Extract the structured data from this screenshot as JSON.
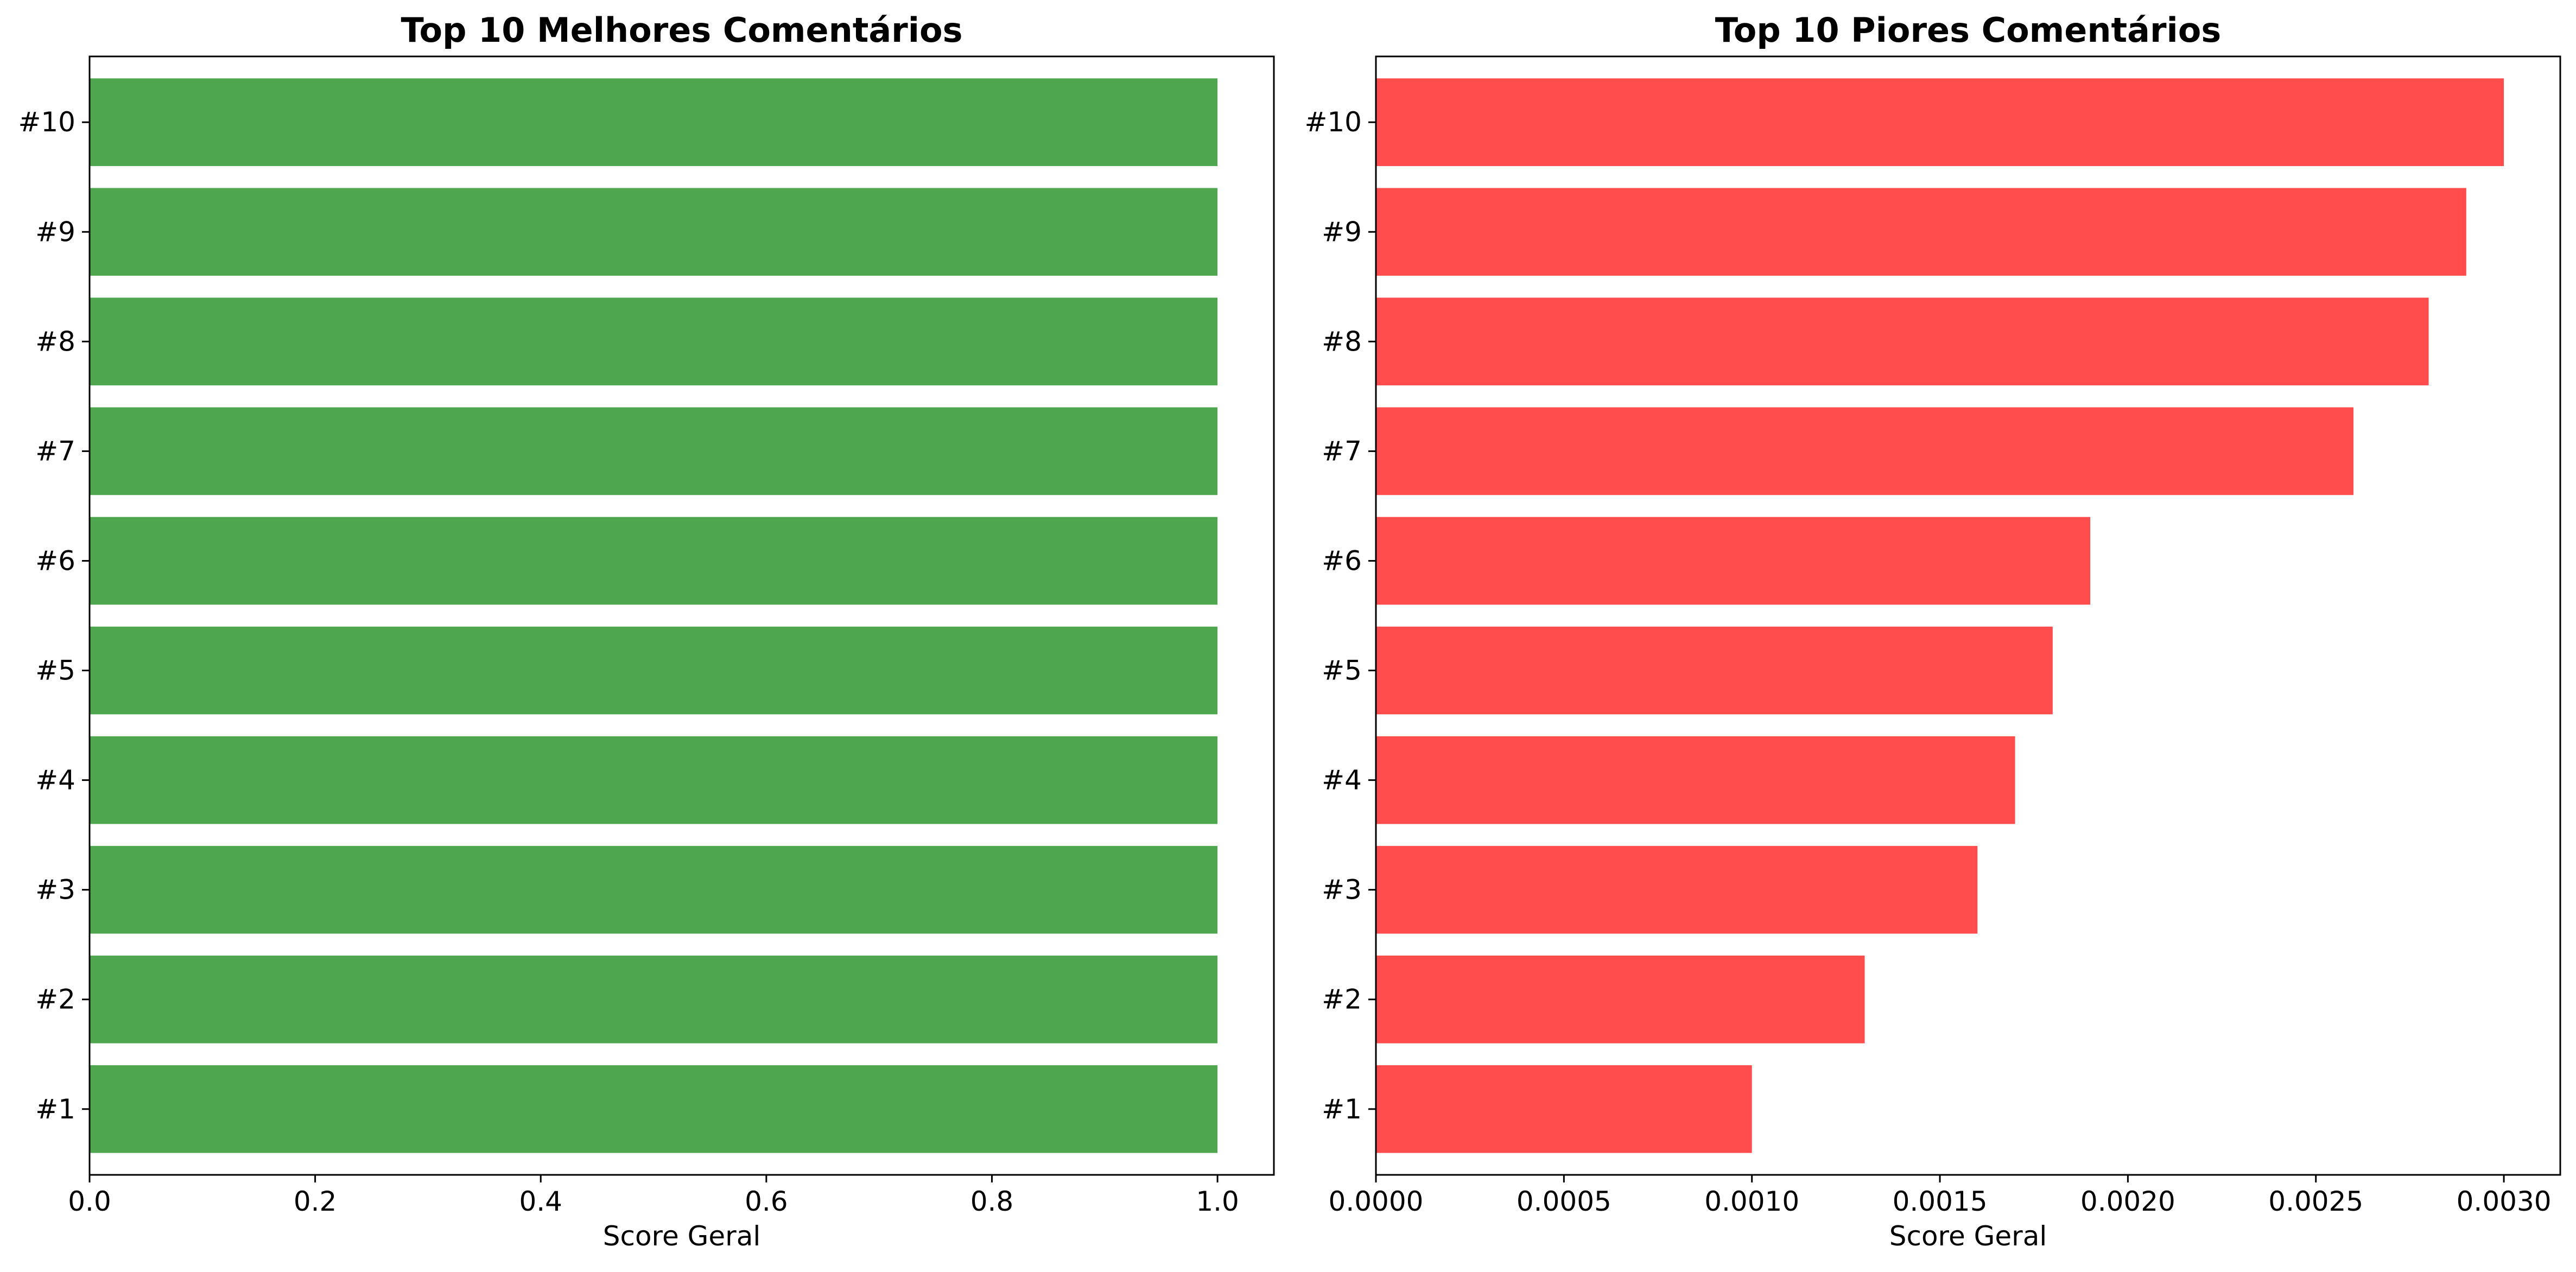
{
  "chart_data": [
    {
      "type": "bar",
      "orientation": "horizontal",
      "title": "Top 10 Melhores Comentários",
      "xlabel": "Score Geral",
      "ylabel": "",
      "categories": [
        "#1",
        "#2",
        "#3",
        "#4",
        "#5",
        "#6",
        "#7",
        "#8",
        "#9",
        "#10"
      ],
      "values": [
        1.0,
        1.0,
        1.0,
        1.0,
        1.0,
        1.0,
        1.0,
        1.0,
        1.0,
        1.0
      ],
      "xlim": [
        0,
        1.05
      ],
      "xticks": [
        0.0,
        0.2,
        0.4,
        0.6,
        0.8,
        1.0
      ],
      "xtick_labels": [
        "0.0",
        "0.2",
        "0.4",
        "0.6",
        "0.8",
        "1.0"
      ],
      "color": "#4ea74e",
      "grid": false
    },
    {
      "type": "bar",
      "orientation": "horizontal",
      "title": "Top 10 Piores Comentários",
      "xlabel": "Score Geral",
      "ylabel": "",
      "categories": [
        "#1",
        "#2",
        "#3",
        "#4",
        "#5",
        "#6",
        "#7",
        "#8",
        "#9",
        "#10"
      ],
      "values": [
        0.001,
        0.0013,
        0.0016,
        0.0017,
        0.0018,
        0.0019,
        0.0026,
        0.0028,
        0.0029,
        0.003
      ],
      "xlim": [
        0,
        0.00315
      ],
      "xticks": [
        0.0,
        0.0005,
        0.001,
        0.0015,
        0.002,
        0.0025,
        0.003
      ],
      "xtick_labels": [
        "0.0000",
        "0.0005",
        "0.0010",
        "0.0015",
        "0.0020",
        "0.0025",
        "0.0030"
      ],
      "color": "#ff4d4d",
      "grid": false
    }
  ]
}
